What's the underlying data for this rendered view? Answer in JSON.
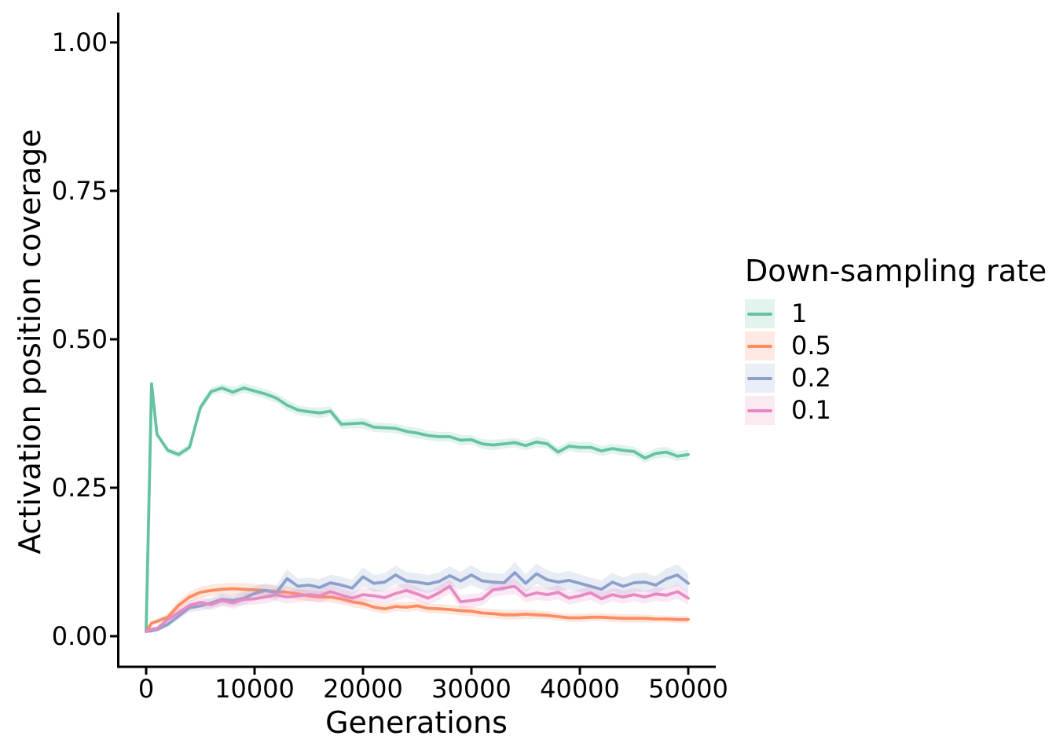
{
  "figure": {
    "background": "#ffffff",
    "text_color": "#000000",
    "spine_color": "#000000"
  },
  "chart_data": {
    "type": "line",
    "title": "",
    "xlabel": "Generations",
    "ylabel": "Activation position coverage",
    "legend_title": "Down-sampling rate",
    "legend_position": "right",
    "grid": false,
    "bands": "shaded confidence interval around each line",
    "xlim": [
      -2600,
      52600
    ],
    "ylim": [
      -0.05,
      1.05
    ],
    "xticks": {
      "values": [
        0,
        10000,
        20000,
        30000,
        40000,
        50000
      ],
      "labels": [
        "0",
        "10000",
        "20000",
        "30000",
        "40000",
        "50000"
      ]
    },
    "yticks": {
      "values": [
        1.0,
        0.75,
        0.5,
        0.25,
        0.0
      ],
      "labels": [
        "1.00",
        "0.75",
        "0.50",
        "0.25",
        "0.00"
      ]
    },
    "x": [
      0,
      500,
      1000,
      2000,
      3000,
      4000,
      5000,
      6000,
      7000,
      8000,
      9000,
      10000,
      11000,
      12000,
      13000,
      14000,
      15000,
      16000,
      17000,
      18000,
      19000,
      20000,
      21000,
      22000,
      23000,
      24000,
      25000,
      26000,
      27000,
      28000,
      29000,
      30000,
      31000,
      32000,
      33000,
      34000,
      35000,
      36000,
      37000,
      38000,
      39000,
      40000,
      41000,
      42000,
      43000,
      44000,
      45000,
      46000,
      47000,
      48000,
      49000,
      50000
    ],
    "series": [
      {
        "name": "1",
        "color": "#66c2a5",
        "band_alpha": 0.2,
        "values": [
          0.01,
          0.425,
          0.34,
          0.313,
          0.306,
          0.318,
          0.385,
          0.412,
          0.418,
          0.411,
          0.418,
          0.413,
          0.408,
          0.401,
          0.389,
          0.381,
          0.378,
          0.376,
          0.379,
          0.357,
          0.358,
          0.359,
          0.352,
          0.351,
          0.35,
          0.345,
          0.342,
          0.338,
          0.336,
          0.336,
          0.33,
          0.331,
          0.324,
          0.322,
          0.324,
          0.326,
          0.321,
          0.327,
          0.324,
          0.31,
          0.32,
          0.318,
          0.318,
          0.312,
          0.316,
          0.313,
          0.311,
          0.3,
          0.308,
          0.31,
          0.303,
          0.306
        ],
        "band": [
          0.001,
          0.001,
          0.004,
          0.005,
          0.006,
          0.006,
          0.007,
          0.007,
          0.007,
          0.008,
          0.008,
          0.008,
          0.008,
          0.008,
          0.009,
          0.008,
          0.008,
          0.009,
          0.008,
          0.008,
          0.008,
          0.009,
          0.008,
          0.008,
          0.008,
          0.008,
          0.009,
          0.008,
          0.008,
          0.008,
          0.009,
          0.008,
          0.008,
          0.009,
          0.008,
          0.008,
          0.008,
          0.009,
          0.008,
          0.008,
          0.008,
          0.009,
          0.009,
          0.008,
          0.008,
          0.009,
          0.008,
          0.008,
          0.009,
          0.009,
          0.008,
          0.008
        ]
      },
      {
        "name": "0.5",
        "color": "#fc8d62",
        "band_alpha": 0.2,
        "values": [
          0.008,
          0.022,
          0.025,
          0.032,
          0.052,
          0.066,
          0.074,
          0.077,
          0.079,
          0.08,
          0.079,
          0.078,
          0.077,
          0.075,
          0.074,
          0.071,
          0.068,
          0.066,
          0.066,
          0.063,
          0.058,
          0.055,
          0.049,
          0.046,
          0.05,
          0.049,
          0.051,
          0.047,
          0.046,
          0.045,
          0.043,
          0.042,
          0.039,
          0.038,
          0.036,
          0.036,
          0.037,
          0.036,
          0.035,
          0.033,
          0.031,
          0.031,
          0.032,
          0.032,
          0.031,
          0.03,
          0.03,
          0.03,
          0.029,
          0.029,
          0.028,
          0.028
        ],
        "band": [
          0.002,
          0.003,
          0.004,
          0.006,
          0.008,
          0.009,
          0.009,
          0.01,
          0.01,
          0.01,
          0.01,
          0.01,
          0.01,
          0.01,
          0.01,
          0.009,
          0.009,
          0.009,
          0.009,
          0.009,
          0.009,
          0.009,
          0.008,
          0.008,
          0.008,
          0.008,
          0.008,
          0.008,
          0.008,
          0.008,
          0.008,
          0.008,
          0.008,
          0.008,
          0.008,
          0.008,
          0.008,
          0.007,
          0.007,
          0.007,
          0.007,
          0.007,
          0.007,
          0.007,
          0.007,
          0.007,
          0.007,
          0.007,
          0.006,
          0.006,
          0.006,
          0.006
        ]
      },
      {
        "name": "0.2",
        "color": "#8da0cb",
        "band_alpha": 0.2,
        "values": [
          0.008,
          0.009,
          0.011,
          0.02,
          0.034,
          0.048,
          0.051,
          0.056,
          0.062,
          0.06,
          0.064,
          0.072,
          0.077,
          0.073,
          0.097,
          0.084,
          0.086,
          0.082,
          0.09,
          0.086,
          0.081,
          0.1,
          0.089,
          0.091,
          0.103,
          0.093,
          0.091,
          0.088,
          0.092,
          0.102,
          0.093,
          0.103,
          0.093,
          0.091,
          0.09,
          0.107,
          0.089,
          0.105,
          0.095,
          0.091,
          0.094,
          0.089,
          0.084,
          0.079,
          0.091,
          0.084,
          0.09,
          0.091,
          0.086,
          0.097,
          0.103,
          0.089
        ],
        "band": [
          0.002,
          0.002,
          0.003,
          0.004,
          0.006,
          0.008,
          0.008,
          0.009,
          0.01,
          0.01,
          0.011,
          0.012,
          0.012,
          0.013,
          0.016,
          0.013,
          0.013,
          0.014,
          0.014,
          0.014,
          0.014,
          0.016,
          0.014,
          0.015,
          0.016,
          0.015,
          0.015,
          0.015,
          0.015,
          0.016,
          0.015,
          0.017,
          0.015,
          0.015,
          0.015,
          0.018,
          0.015,
          0.017,
          0.016,
          0.015,
          0.016,
          0.015,
          0.015,
          0.015,
          0.016,
          0.015,
          0.016,
          0.016,
          0.015,
          0.017,
          0.018,
          0.016
        ]
      },
      {
        "name": "0.1",
        "color": "#e78ac3",
        "band_alpha": 0.2,
        "values": [
          0.008,
          0.012,
          0.013,
          0.028,
          0.04,
          0.052,
          0.057,
          0.053,
          0.06,
          0.056,
          0.062,
          0.063,
          0.066,
          0.07,
          0.066,
          0.068,
          0.07,
          0.068,
          0.075,
          0.069,
          0.064,
          0.07,
          0.068,
          0.065,
          0.072,
          0.077,
          0.071,
          0.064,
          0.073,
          0.084,
          0.058,
          0.06,
          0.063,
          0.078,
          0.081,
          0.084,
          0.068,
          0.073,
          0.07,
          0.074,
          0.064,
          0.068,
          0.073,
          0.063,
          0.07,
          0.066,
          0.07,
          0.066,
          0.071,
          0.069,
          0.075,
          0.064
        ],
        "band": [
          0.002,
          0.002,
          0.003,
          0.005,
          0.007,
          0.008,
          0.009,
          0.009,
          0.009,
          0.01,
          0.01,
          0.01,
          0.011,
          0.011,
          0.011,
          0.011,
          0.011,
          0.011,
          0.012,
          0.011,
          0.011,
          0.011,
          0.011,
          0.011,
          0.012,
          0.012,
          0.012,
          0.011,
          0.012,
          0.013,
          0.011,
          0.011,
          0.011,
          0.012,
          0.012,
          0.013,
          0.011,
          0.012,
          0.011,
          0.012,
          0.011,
          0.011,
          0.012,
          0.011,
          0.011,
          0.011,
          0.011,
          0.011,
          0.011,
          0.012,
          0.012,
          0.011
        ]
      }
    ]
  }
}
